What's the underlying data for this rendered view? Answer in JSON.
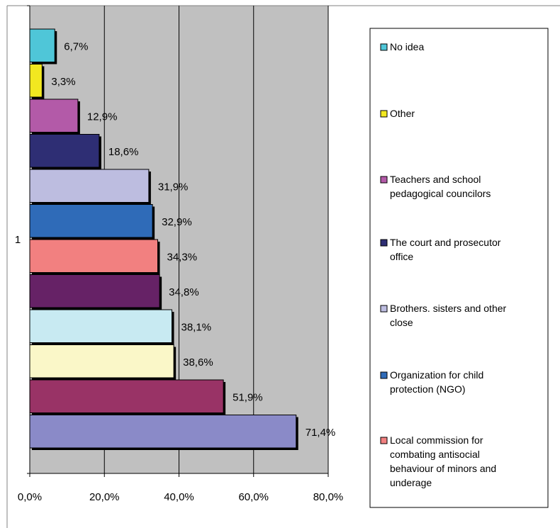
{
  "chart_data": {
    "type": "bar",
    "orientation": "horizontal",
    "category_label": "1",
    "xlim": [
      0,
      80
    ],
    "x_ticks": [
      "0,0%",
      "20,0%",
      "40,0%",
      "60,0%",
      "80,0%"
    ],
    "x_tick_values": [
      0,
      20,
      40,
      60,
      80
    ],
    "grid": "vertical",
    "plot_background": "#C0C0C0",
    "legend_position": "right",
    "series": [
      {
        "name": "No idea",
        "value": 6.7,
        "label": "6,7%",
        "color": "#4FC6D8"
      },
      {
        "name": "Other",
        "value": 3.3,
        "label": "3,3%",
        "color": "#F2E820"
      },
      {
        "name": "Teachers and school pedagogical  councilors",
        "value": 12.9,
        "label": "12,9%",
        "color": "#B35AA8"
      },
      {
        "name": "The court and prosecutor office",
        "value": 18.6,
        "label": "18,6%",
        "color": "#2E2E74"
      },
      {
        "name": "Brothers. sisters and other close",
        "value": 31.9,
        "label": "31,9%",
        "color": "#BDBDE0"
      },
      {
        "name": "Organization for child protection (NGO)",
        "value": 32.9,
        "label": "32,9%",
        "color": "#2F6BB8"
      },
      {
        "name": "Local commission for combating antisocial behaviour of minors and underage",
        "value": 34.3,
        "label": "34,3%",
        "color": "#F28080"
      },
      {
        "value": 34.8,
        "label": "34,8%",
        "color": "#662266"
      },
      {
        "value": 38.1,
        "label": "38,1%",
        "color": "#C8EAF2"
      },
      {
        "value": 38.6,
        "label": "38,6%",
        "color": "#FAF7C8"
      },
      {
        "value": 51.9,
        "label": "51,9%",
        "color": "#993366"
      },
      {
        "value": 71.4,
        "label": "71,4%",
        "color": "#8A8AC8"
      }
    ],
    "legend_lines": [
      [
        "No idea"
      ],
      [
        "Other"
      ],
      [
        "Teachers and school",
        "pedagogical  councilors"
      ],
      [
        "The court and prosecutor",
        "office"
      ],
      [
        "Brothers. sisters and other",
        "close"
      ],
      [
        "Organization for child",
        "protection (NGO)"
      ],
      [
        "Local commission for",
        "combating antisocial",
        "behaviour of minors and",
        "underage"
      ]
    ]
  }
}
